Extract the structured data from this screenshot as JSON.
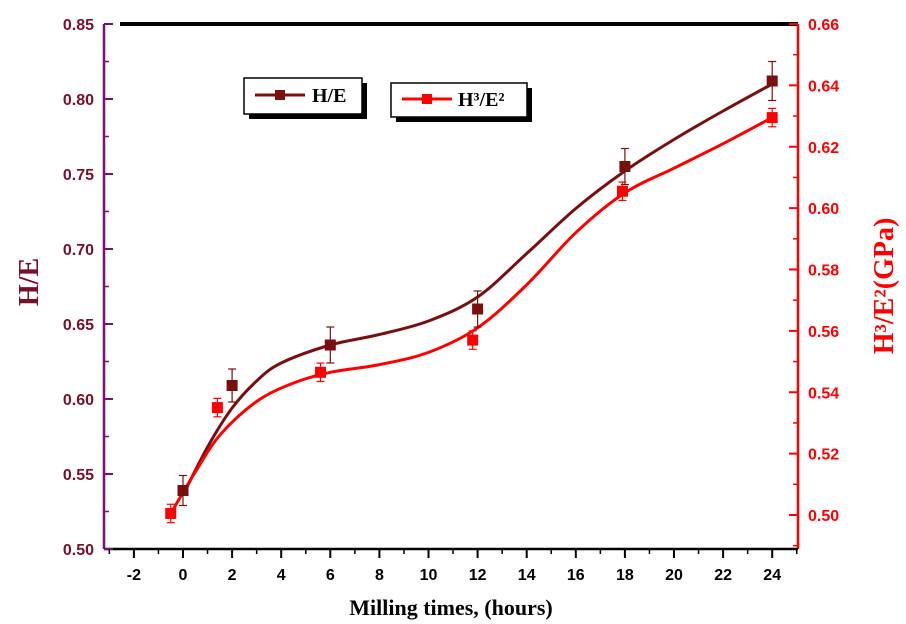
{
  "chart_data": {
    "type": "line",
    "xlabel": "Milling times, (hours)",
    "ylabel_left": "H/E",
    "ylabel_right": "H³/E²(GPa)",
    "xlim": [
      -3,
      26
    ],
    "ylim_left": [
      0.5,
      0.85
    ],
    "ylim_right": [
      0.49,
      0.66
    ],
    "x_ticks": [
      "-2",
      "0",
      "2",
      "4",
      "6",
      "8",
      "10",
      "12",
      "14",
      "16",
      "18",
      "20",
      "22",
      "24"
    ],
    "y_left_ticks": [
      "0.50",
      "0.55",
      "0.60",
      "0.65",
      "0.70",
      "0.75",
      "0.80",
      "0.85"
    ],
    "y_right_ticks": [
      "0.50",
      "0.52",
      "0.54",
      "0.56",
      "0.58",
      "0.60",
      "0.62",
      "0.64",
      "0.66"
    ],
    "series": [
      {
        "name": "H/E",
        "axis": "left",
        "color": "#7a0f0f",
        "x": [
          0,
          2,
          6,
          12,
          18,
          24
        ],
        "y": [
          0.539,
          0.609,
          0.636,
          0.66,
          0.755,
          0.812
        ],
        "err": [
          0.01,
          0.011,
          0.012,
          0.012,
          0.012,
          0.013
        ],
        "fit": [
          [
            0,
            0.536
          ],
          [
            1,
            0.568
          ],
          [
            2,
            0.594
          ],
          [
            3,
            0.612
          ],
          [
            4,
            0.624
          ],
          [
            6,
            0.636
          ],
          [
            8,
            0.643
          ],
          [
            10,
            0.652
          ],
          [
            12,
            0.668
          ],
          [
            14,
            0.697
          ],
          [
            16,
            0.727
          ],
          [
            18,
            0.752
          ],
          [
            20,
            0.773
          ],
          [
            22,
            0.792
          ],
          [
            24,
            0.81
          ]
        ]
      },
      {
        "name": "H³/E²",
        "axis": "right",
        "color": "#ff0000",
        "x": [
          -0.5,
          1.4,
          5.6,
          11.8,
          17.9,
          24
        ],
        "y": [
          0.5005,
          0.535,
          0.5465,
          0.557,
          0.6055,
          0.6295
        ],
        "err": [
          0.003,
          0.003,
          0.003,
          0.003,
          0.003,
          0.003
        ],
        "fit": [
          [
            -0.5,
            0.5005
          ],
          [
            0.5,
            0.514
          ],
          [
            1.5,
            0.526
          ],
          [
            3,
            0.537
          ],
          [
            4.5,
            0.543
          ],
          [
            6,
            0.5465
          ],
          [
            8,
            0.549
          ],
          [
            10,
            0.553
          ],
          [
            12,
            0.561
          ],
          [
            14,
            0.575
          ],
          [
            16,
            0.592
          ],
          [
            18,
            0.605
          ],
          [
            20,
            0.613
          ],
          [
            22,
            0.621
          ],
          [
            24,
            0.6295
          ]
        ]
      }
    ],
    "legend": [
      {
        "label": "H/E",
        "series": 0,
        "position": "top-left"
      },
      {
        "label": "H³/E²",
        "series": 1,
        "position": "top-center"
      }
    ]
  }
}
